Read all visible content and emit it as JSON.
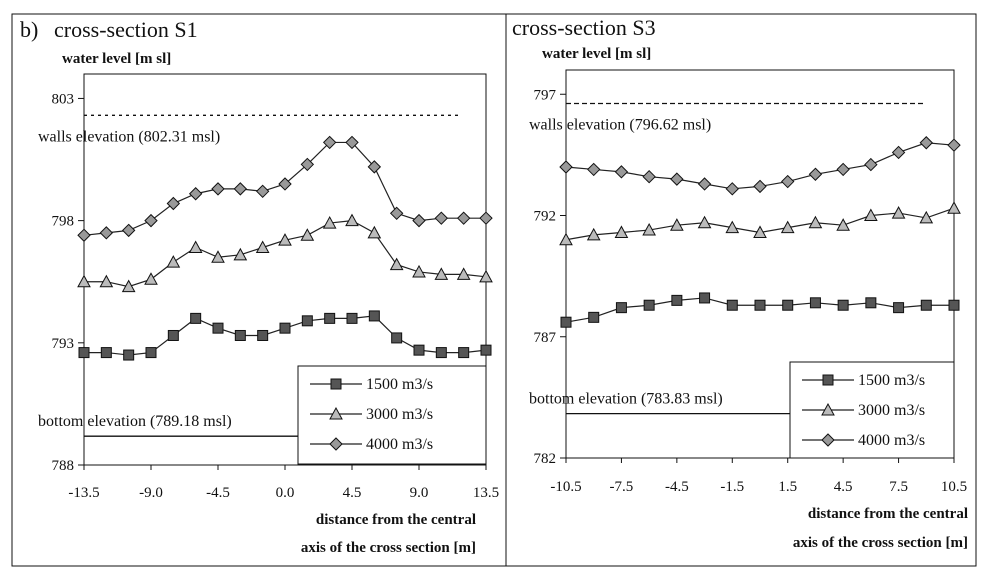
{
  "chart_data": [
    {
      "type": "line",
      "panel_label": "b)",
      "title": "cross-section S1",
      "ylabel": "water level [m sl]",
      "xlabel_line1": "distance from the central",
      "xlabel_line2": "axis of the cross section [m]",
      "xlim": [
        -13.5,
        13.5
      ],
      "ylim": [
        788,
        804
      ],
      "xticks": [
        -13.5,
        -9.0,
        -4.5,
        0.0,
        4.5,
        9.0,
        13.5
      ],
      "xtick_labels": [
        "-13.5",
        "-9.0",
        "-4.5",
        "0.0",
        "4.5",
        "9.0",
        "13.5"
      ],
      "yticks": [
        788,
        793,
        798,
        803
      ],
      "ytick_labels": [
        "788",
        "793",
        "798",
        "803"
      ],
      "x": [
        -13.5,
        -12,
        -10.5,
        -9,
        -7.5,
        -6,
        -4.5,
        -3,
        -1.5,
        0,
        1.5,
        3,
        4.5,
        6,
        7.5,
        9,
        10.5,
        12,
        13.5
      ],
      "series": [
        {
          "name": "1500 m3/s",
          "marker": "square",
          "values": [
            792.6,
            792.6,
            792.5,
            792.6,
            793.3,
            794.0,
            793.6,
            793.3,
            793.3,
            793.6,
            793.9,
            794.0,
            794.0,
            794.1,
            793.2,
            792.7,
            792.6,
            792.6,
            792.7
          ]
        },
        {
          "name": "3000 m3/s",
          "marker": "triangle",
          "values": [
            795.5,
            795.5,
            795.3,
            795.6,
            796.3,
            796.9,
            796.5,
            796.6,
            796.9,
            797.2,
            797.4,
            797.9,
            798.0,
            797.5,
            796.2,
            795.9,
            795.8,
            795.8,
            795.7
          ]
        },
        {
          "name": "4000 m3/s",
          "marker": "diamond",
          "values": [
            797.4,
            797.5,
            797.6,
            798.0,
            798.7,
            799.1,
            799.3,
            799.3,
            799.2,
            799.5,
            800.3,
            801.2,
            801.2,
            800.2,
            798.3,
            798.0,
            798.1,
            798.1,
            798.1
          ]
        }
      ],
      "reference_lines": [
        {
          "label": "walls elevation (802.31 msl)",
          "y": 802.31,
          "style": "dotted"
        },
        {
          "label": "bottom elevation (789.18 msl)",
          "y": 789.18,
          "style": "solid"
        }
      ],
      "legend": "bottom-right"
    },
    {
      "type": "line",
      "title": "cross-section S3",
      "ylabel": "water level [m sl]",
      "xlabel_line1": "distance from the central",
      "xlabel_line2": "axis of the cross section [m]",
      "xlim": [
        -10.5,
        10.5
      ],
      "ylim": [
        782,
        798
      ],
      "xticks": [
        -10.5,
        -7.5,
        -4.5,
        -1.5,
        1.5,
        4.5,
        7.5,
        10.5
      ],
      "xtick_labels": [
        "-10.5",
        "-7.5",
        "-4.5",
        "-1.5",
        "1.5",
        "4.5",
        "7.5",
        "10.5"
      ],
      "yticks": [
        782,
        787,
        792,
        797
      ],
      "ytick_labels": [
        "782",
        "787",
        "792",
        "797"
      ],
      "x": [
        -10.5,
        -9,
        -7.5,
        -6,
        -4.5,
        -3,
        -1.5,
        0,
        1.5,
        3,
        4.5,
        6,
        7.5,
        9,
        10.5
      ],
      "series": [
        {
          "name": "1500 m3/s",
          "marker": "square",
          "values": [
            787.6,
            787.8,
            788.2,
            788.3,
            788.5,
            788.6,
            788.3,
            788.3,
            788.3,
            788.4,
            788.3,
            788.4,
            788.2,
            788.3,
            788.3
          ]
        },
        {
          "name": "3000 m3/s",
          "marker": "triangle",
          "values": [
            791.0,
            791.2,
            791.3,
            791.4,
            791.6,
            791.7,
            791.5,
            791.3,
            791.5,
            791.7,
            791.6,
            792.0,
            792.1,
            791.9,
            792.3
          ]
        },
        {
          "name": "4000 m3/s",
          "marker": "diamond",
          "values": [
            794.0,
            793.9,
            793.8,
            793.6,
            793.5,
            793.3,
            793.1,
            793.2,
            793.4,
            793.7,
            793.9,
            794.1,
            794.6,
            795.0,
            794.9
          ]
        }
      ],
      "reference_lines": [
        {
          "label": "walls elevation (796.62 msl)",
          "y": 796.62,
          "style": "dashed"
        },
        {
          "label": "bottom elevation (783.83 msl)",
          "y": 783.83,
          "style": "solid"
        }
      ],
      "legend": "bottom-right"
    }
  ]
}
